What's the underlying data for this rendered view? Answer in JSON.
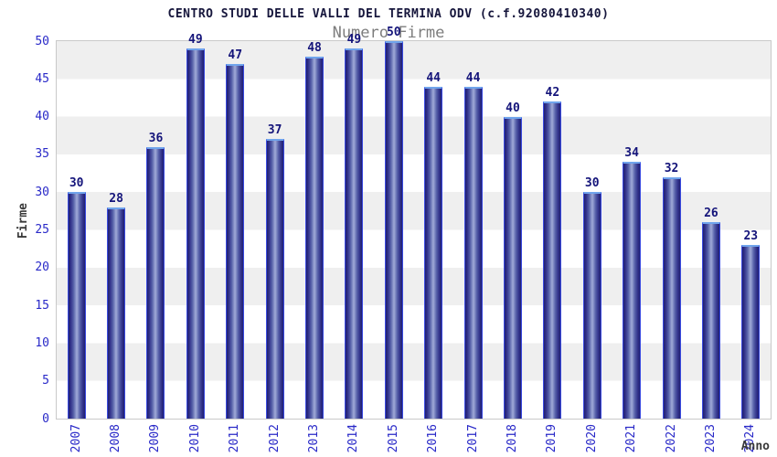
{
  "chart_data": {
    "type": "bar",
    "title": "CENTRO STUDI DELLE VALLI DEL TERMINA ODV (c.f.92080410340)",
    "subtitle": "Numero Firme",
    "xlabel": "Anno",
    "ylabel": "Firme",
    "categories": [
      "2007",
      "2008",
      "2009",
      "2010",
      "2011",
      "2012",
      "2013",
      "2014",
      "2015",
      "2016",
      "2017",
      "2018",
      "2019",
      "2020",
      "2021",
      "2022",
      "2023",
      "2024"
    ],
    "values": [
      30,
      28,
      36,
      49,
      47,
      37,
      48,
      49,
      50,
      44,
      44,
      40,
      42,
      30,
      34,
      32,
      26,
      23
    ],
    "ylim": [
      0,
      50
    ],
    "ytick_step": 5,
    "legend": "none",
    "grid": "alternating horizontal gray/white bands every 5 units",
    "colors": {
      "bar_edge": "#3a4ae0",
      "bar_dark": "#1f1f70",
      "bar_light": "#a0aad8",
      "bar_top_cap": "#70a4ec",
      "value_label": "#14147a",
      "tick_label": "#2929c8",
      "axis_title": "#3a3a3a",
      "title": "#16163c",
      "subtitle": "#7d7d7d",
      "band_gray": "#efefef",
      "band_white": "#ffffff",
      "plot_border": "#c9c9c9"
    }
  }
}
